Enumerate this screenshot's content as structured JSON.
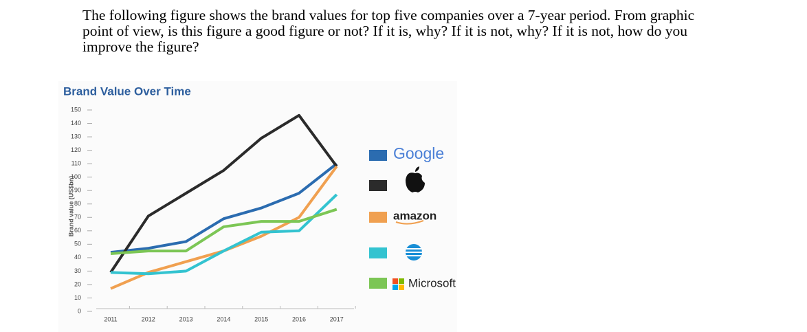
{
  "question_lines": [
    "The following figure shows the brand values for top five companies over a 7-year period.  From graphic",
    "point of view, is this figure a good figure or not?  If it is, why?  If it is not, why?  If it is not, how do you",
    "improve the figure?"
  ],
  "chart_data": {
    "type": "line",
    "title": "Brand Value Over Time",
    "y_label": "Brand value (US$bn)",
    "categories": [
      "2011",
      "2012",
      "2013",
      "2014",
      "2015",
      "2016",
      "2017"
    ],
    "series": [
      {
        "name": "Google",
        "color": "#2b6cb0",
        "values": [
          44,
          47,
          52,
          69,
          77,
          88,
          110
        ]
      },
      {
        "color": "#2b2b2b",
        "values": [
          29,
          71,
          88,
          105,
          129,
          146,
          108
        ]
      },
      {
        "name": "amazon",
        "color": "#f0a050",
        "values": [
          17,
          29,
          37,
          45,
          56,
          70,
          108
        ]
      },
      {
        "color": "#33c3d0",
        "values": [
          29,
          28,
          30,
          45,
          59,
          60,
          87
        ]
      },
      {
        "name": "Microsoft",
        "color": "#7cc655",
        "values": [
          43,
          45,
          45,
          63,
          67,
          67,
          76
        ]
      }
    ],
    "ylim": [
      0,
      150
    ],
    "yticks": [
      0,
      10,
      20,
      30,
      40,
      50,
      60,
      70,
      80,
      90,
      100,
      110,
      120,
      130,
      140,
      150
    ]
  }
}
